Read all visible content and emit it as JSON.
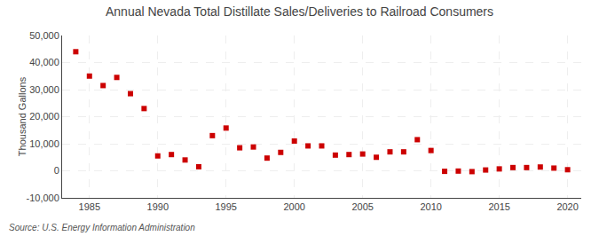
{
  "chart_data": {
    "type": "scatter",
    "title": "Annual Nevada Total Distillate Sales/Deliveries to Railroad Consumers",
    "ylabel": "Thousand Gallons",
    "annotation": "Source: U.S. Energy Information Administration",
    "x": [
      1984,
      1985,
      1986,
      1987,
      1988,
      1989,
      1990,
      1991,
      1992,
      1993,
      1994,
      1995,
      1996,
      1997,
      1998,
      1999,
      2000,
      2001,
      2002,
      2003,
      2004,
      2005,
      2006,
      2007,
      2008,
      2009,
      2010,
      2011,
      2012,
      2013,
      2014,
      2015,
      2016,
      2017,
      2018,
      2019,
      2020
    ],
    "values": [
      44000,
      35000,
      31500,
      34500,
      28500,
      23000,
      5500,
      6000,
      4000,
      1500,
      13000,
      15800,
      8500,
      8800,
      4700,
      6800,
      11000,
      9200,
      9200,
      5800,
      6000,
      6200,
      5000,
      7000,
      7000,
      11500,
      7500,
      -200,
      -100,
      -300,
      300,
      700,
      1200,
      1200,
      1400,
      1000,
      400
    ],
    "color": "#cc0000",
    "marker": "square",
    "xlim": [
      1983,
      2021
    ],
    "xticks": [
      1985,
      1990,
      1995,
      2000,
      2005,
      2010,
      2015,
      2020
    ],
    "ylim": [
      -10000,
      50000
    ],
    "yticks": [
      {
        "value": -10000,
        "label": "-10,000"
      },
      0,
      {
        "value": 10000,
        "label": "10,000"
      },
      {
        "value": 20000,
        "label": "20,000"
      },
      {
        "value": 30000,
        "label": "30,000"
      },
      {
        "value": 40000,
        "label": "40,000"
      },
      {
        "value": 50000,
        "label": "50,000"
      }
    ],
    "grid": true
  }
}
